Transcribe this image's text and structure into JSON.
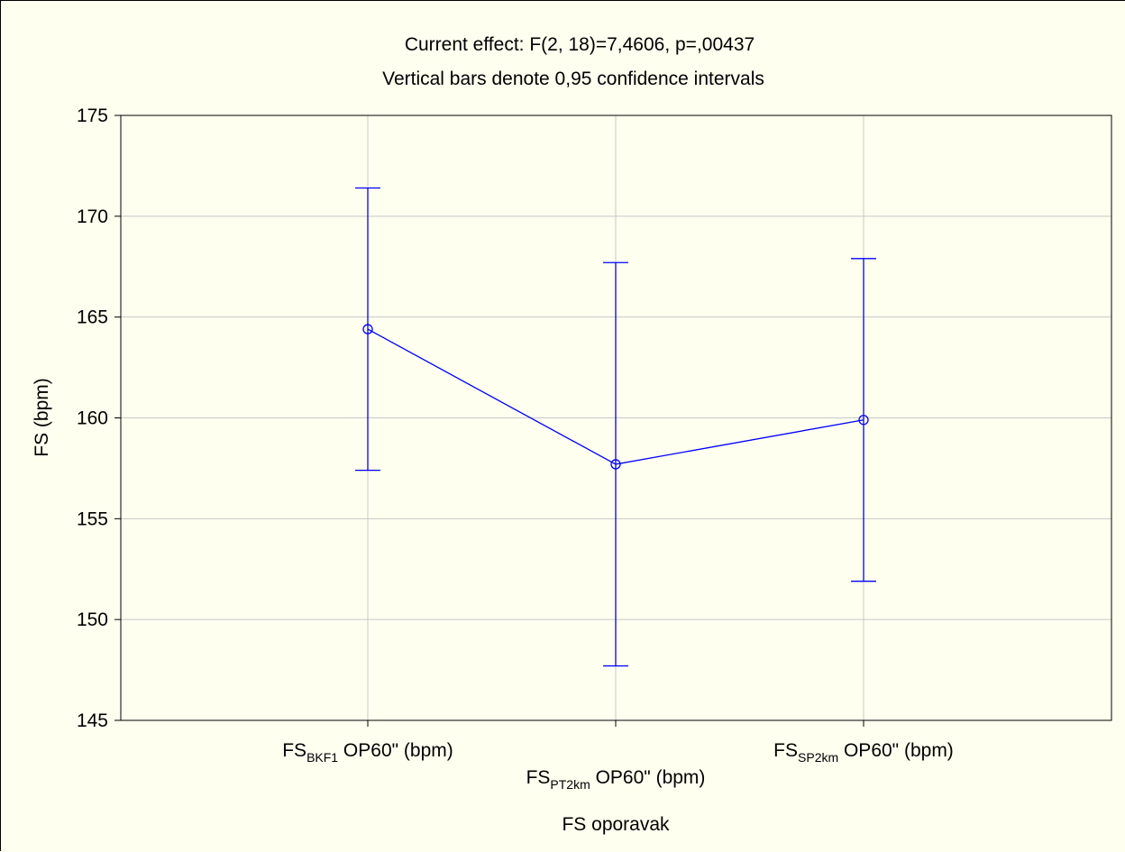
{
  "chart_data": {
    "type": "line",
    "title": "Current effect: F(2, 18)=7,4606, p=,00437",
    "subtitle": "Vertical bars denote 0,95 confidence intervals",
    "xlabel": "FS oporavak",
    "ylabel": "FS (bpm)",
    "ylim": [
      145,
      175
    ],
    "yticks": [
      "175",
      "170",
      "165",
      "160",
      "155",
      "150",
      "145"
    ],
    "categories": [
      {
        "main": "FS",
        "sub": "BKF1",
        "rest": " OP60\" (bpm)"
      },
      {
        "main": "FS",
        "sub": "PT2km",
        "rest": " OP60\" (bpm)"
      },
      {
        "main": "FS",
        "sub": "SP2km",
        "rest": " OP60\" (bpm)"
      }
    ],
    "series": [
      {
        "values": [
          164.4,
          157.7,
          159.9
        ],
        "ci_lower": [
          157.4,
          147.7,
          151.9
        ],
        "ci_upper": [
          171.4,
          167.7,
          167.9
        ],
        "color": "#0000ff"
      }
    ],
    "grid": true,
    "background": "#fffff0",
    "gridline_color": "#c8c8c8"
  }
}
